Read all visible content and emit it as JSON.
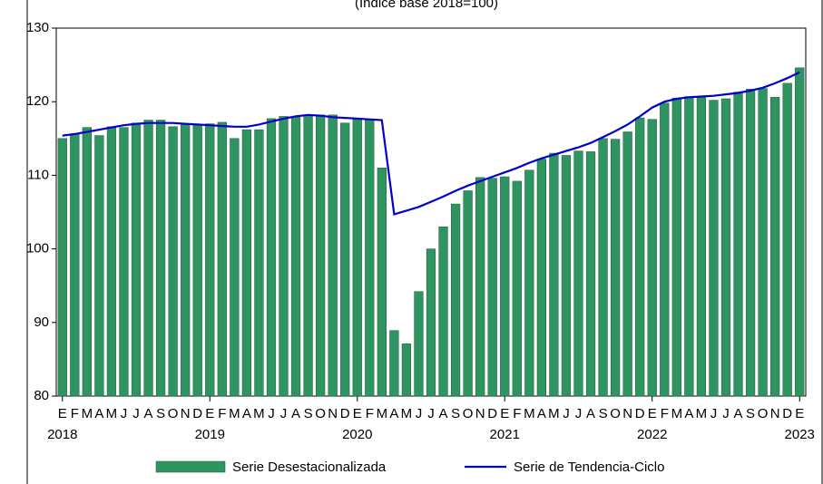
{
  "chart_data": {
    "type": "bar_line",
    "subtitle": "(Índice base 2018=100)",
    "categories": [
      "E",
      "F",
      "M",
      "A",
      "M",
      "J",
      "J",
      "A",
      "S",
      "O",
      "N",
      "D",
      "E",
      "F",
      "M",
      "A",
      "M",
      "J",
      "J",
      "A",
      "S",
      "O",
      "N",
      "D",
      "E",
      "F",
      "M",
      "A",
      "M",
      "J",
      "J",
      "A",
      "S",
      "O",
      "N",
      "D",
      "E",
      "F",
      "M",
      "A",
      "M",
      "J",
      "J",
      "A",
      "S",
      "O",
      "N",
      "D",
      "E",
      "F",
      "M",
      "A",
      "M",
      "J",
      "J",
      "A",
      "S",
      "O",
      "N",
      "D",
      "E"
    ],
    "year_labels": [
      "2018",
      null,
      null,
      null,
      null,
      null,
      null,
      null,
      null,
      null,
      null,
      null,
      "2019",
      null,
      null,
      null,
      null,
      null,
      null,
      null,
      null,
      null,
      null,
      null,
      "2020",
      null,
      null,
      null,
      null,
      null,
      null,
      null,
      null,
      null,
      null,
      null,
      "2021",
      null,
      null,
      null,
      null,
      null,
      null,
      null,
      null,
      null,
      null,
      null,
      "2022",
      null,
      null,
      null,
      null,
      null,
      null,
      null,
      null,
      null,
      null,
      null,
      "2023"
    ],
    "series": [
      {
        "name": "Serie Desestacionalizada",
        "type": "bar",
        "color": "#2e9460",
        "values": [
          115.0,
          115.6,
          116.5,
          115.4,
          116.6,
          116.5,
          117.1,
          117.5,
          117.5,
          116.6,
          116.9,
          116.8,
          117.0,
          117.2,
          115.0,
          116.2,
          116.2,
          117.7,
          118.0,
          117.9,
          118.2,
          118.2,
          118.2,
          117.1,
          117.6,
          117.5,
          111.0,
          88.9,
          87.1,
          94.2,
          100.0,
          103.0,
          106.1,
          107.9,
          109.7,
          109.6,
          109.8,
          109.2,
          110.7,
          112.2,
          113.0,
          112.7,
          113.3,
          113.2,
          115.0,
          114.9,
          115.9,
          117.8,
          117.6,
          119.8,
          120.5,
          120.7,
          120.6,
          120.2,
          120.4,
          121.3,
          121.7,
          121.8,
          120.6,
          122.5,
          124.6
        ]
      },
      {
        "name": "Serie de Tendencia-Ciclo",
        "type": "line",
        "color": "#0000cc",
        "values": [
          115.4,
          115.6,
          115.9,
          116.2,
          116.5,
          116.8,
          117.0,
          117.1,
          117.1,
          117.1,
          117.0,
          116.9,
          116.8,
          116.7,
          116.6,
          116.6,
          116.9,
          117.3,
          117.7,
          118.0,
          118.2,
          118.1,
          117.9,
          117.8,
          117.7,
          117.6,
          117.5,
          104.7,
          105.2,
          105.7,
          106.4,
          107.1,
          107.9,
          108.6,
          109.2,
          109.8,
          110.4,
          111.0,
          111.7,
          112.3,
          112.8,
          113.3,
          113.8,
          114.4,
          115.2,
          116.0,
          116.9,
          118.0,
          119.2,
          120.0,
          120.4,
          120.6,
          120.7,
          120.8,
          121.0,
          121.2,
          121.5,
          121.9,
          122.5,
          123.2,
          124.0
        ]
      }
    ],
    "ylim": [
      80,
      130
    ],
    "yticks": [
      80,
      90,
      100,
      110,
      120,
      130
    ],
    "grid": false
  }
}
